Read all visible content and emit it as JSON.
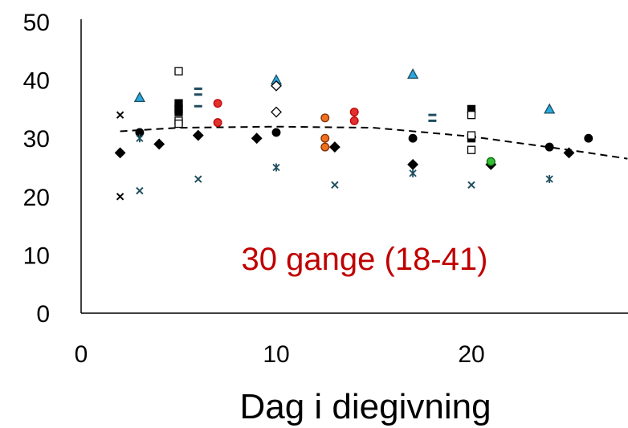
{
  "chart_data": {
    "type": "scatter",
    "xlabel": "Dag i diegivning",
    "ylabel": "",
    "xlim": [
      0,
      28
    ],
    "ylim": [
      0,
      50
    ],
    "x_ticks": [
      0,
      10,
      20
    ],
    "y_ticks": [
      0,
      10,
      20,
      30,
      40,
      50
    ],
    "grid": false,
    "legend": "none",
    "annotation": {
      "text": "30 gange (18-41)",
      "color": "#C00000"
    },
    "trendline": {
      "style": "dashed",
      "color": "#000000",
      "points": [
        [
          2,
          31.2
        ],
        [
          5,
          31.8
        ],
        [
          10,
          32.0
        ],
        [
          15,
          31.8
        ],
        [
          20,
          30.3
        ],
        [
          25,
          28.0
        ],
        [
          28,
          26.5
        ]
      ]
    },
    "series": [
      {
        "marker": "diamond",
        "fill": "#000000",
        "stroke": "#000000",
        "points": [
          [
            2,
            27.5
          ],
          [
            4,
            29.0
          ],
          [
            6,
            30.5
          ],
          [
            9,
            30.0
          ],
          [
            13,
            28.5
          ],
          [
            17,
            25.5
          ],
          [
            21,
            25.5
          ],
          [
            25,
            27.5
          ]
        ]
      },
      {
        "marker": "circle",
        "fill": "#000000",
        "stroke": "#000000",
        "points": [
          [
            3,
            31.0
          ],
          [
            10,
            31.0
          ],
          [
            17,
            30.0
          ],
          [
            21,
            26.0
          ],
          [
            24,
            28.5
          ],
          [
            26,
            30.0
          ]
        ]
      },
      {
        "marker": "x",
        "fill": "none",
        "stroke": "#000000",
        "points": [
          [
            2,
            34.0
          ],
          [
            2,
            20.0
          ]
        ]
      },
      {
        "marker": "x",
        "fill": "none",
        "stroke": "#1F4E5F",
        "points": [
          [
            3,
            21.0
          ],
          [
            6,
            23.0
          ],
          [
            13,
            22.0
          ],
          [
            20,
            22.0
          ]
        ]
      },
      {
        "marker": "star",
        "fill": "none",
        "stroke": "#1F4E5F",
        "points": [
          [
            3,
            30.0
          ],
          [
            10,
            25.0
          ],
          [
            17,
            24.0
          ],
          [
            24,
            23.0
          ]
        ]
      },
      {
        "marker": "triangle",
        "fill": "#29A9E0",
        "stroke": "#1F4E5F",
        "points": [
          [
            3,
            37.0
          ],
          [
            10,
            40.0
          ],
          [
            17,
            41.0
          ],
          [
            24,
            35.0
          ]
        ]
      },
      {
        "marker": "square",
        "fill": "#000000",
        "stroke": "#000000",
        "points": [
          [
            5,
            36.0
          ],
          [
            5,
            35.0
          ],
          [
            5,
            34.5
          ],
          [
            20,
            35.0
          ],
          [
            20,
            30.0
          ]
        ]
      },
      {
        "marker": "square",
        "fill": "#ffffff",
        "stroke": "#000000",
        "points": [
          [
            5,
            41.5
          ],
          [
            5,
            33.0
          ],
          [
            5,
            32.5
          ],
          [
            20,
            34.0
          ],
          [
            20,
            30.5
          ],
          [
            20,
            28.0
          ]
        ]
      },
      {
        "marker": "dash",
        "fill": "none",
        "stroke": "#1F4E5F",
        "points": [
          [
            6,
            38.5
          ],
          [
            6,
            37.5
          ],
          [
            6,
            35.5
          ],
          [
            18,
            34.0
          ],
          [
            18,
            33.0
          ]
        ]
      },
      {
        "marker": "circle",
        "fill": "#E03030",
        "stroke": "#C00000",
        "points": [
          [
            7,
            36.0
          ],
          [
            7,
            32.7
          ],
          [
            14,
            34.5
          ],
          [
            14,
            33.0
          ]
        ]
      },
      {
        "marker": "diamond",
        "fill": "#ffffff",
        "stroke": "#000000",
        "points": [
          [
            10,
            39.0
          ],
          [
            10,
            34.5
          ]
        ]
      },
      {
        "marker": "circle",
        "fill": "#F07020",
        "stroke": "#7F3000",
        "points": [
          [
            12.5,
            33.5
          ],
          [
            12.5,
            30.0
          ],
          [
            12.5,
            28.5
          ]
        ]
      },
      {
        "marker": "circle",
        "fill": "#30C030",
        "stroke": "#107010",
        "points": [
          [
            21,
            26.0
          ]
        ]
      }
    ]
  }
}
